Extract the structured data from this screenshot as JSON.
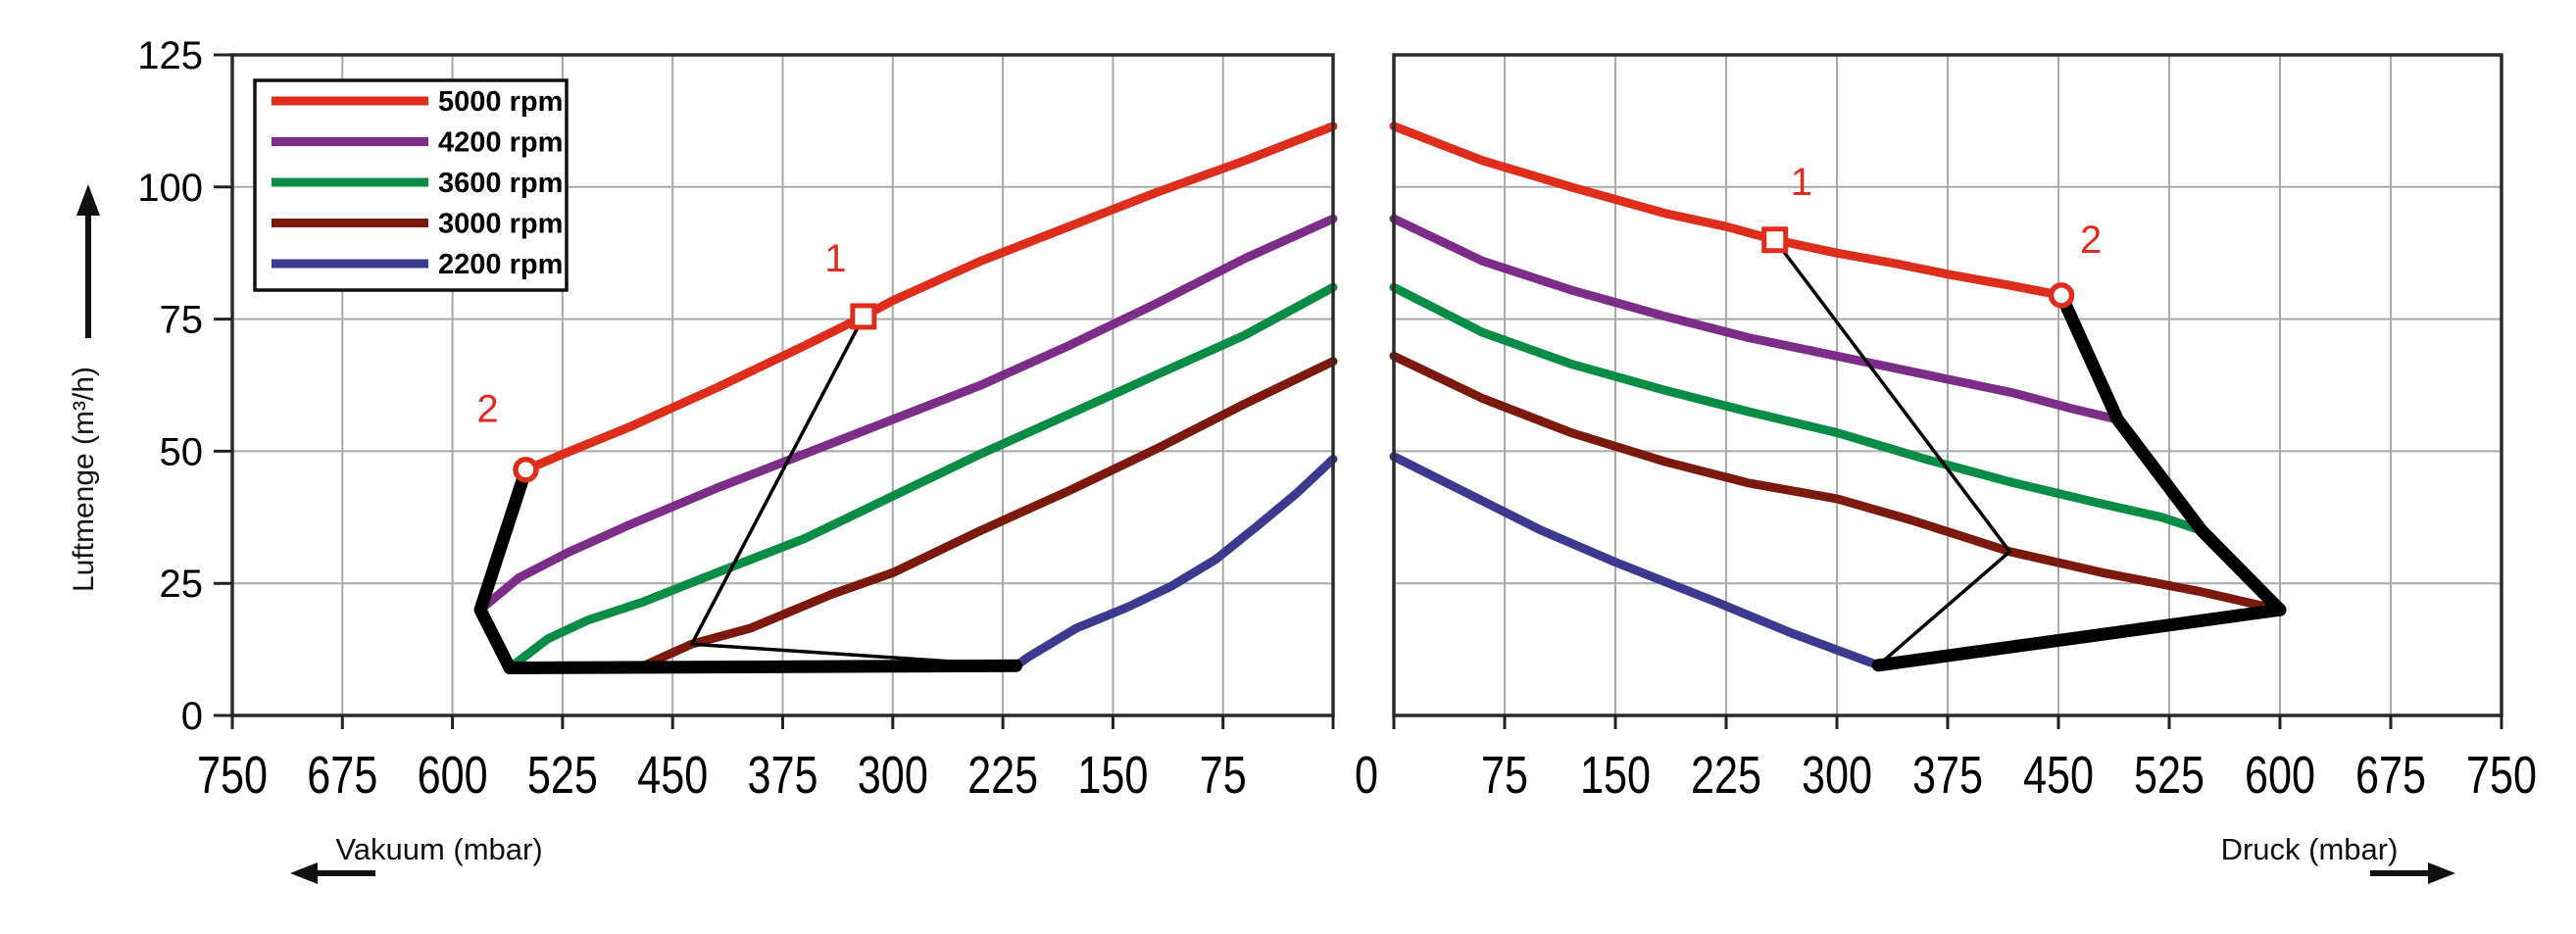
{
  "chart_data": {
    "type": "line",
    "title": "",
    "ylabel": "Luftmenge (m³/h)",
    "xlabel_left": "Vakuum (mbar)",
    "xlabel_right": "Druck (mbar)",
    "zero_label": "0",
    "ylim": [
      0,
      125
    ],
    "yticks": [
      0,
      25,
      50,
      75,
      100,
      125
    ],
    "x_max_mbar": 750,
    "xticks_left": [
      750,
      675,
      600,
      525,
      450,
      375,
      300,
      225,
      150,
      75
    ],
    "xticks_right": [
      75,
      150,
      225,
      300,
      375,
      450,
      525,
      600,
      675,
      750
    ],
    "grid": true,
    "legend_position": "top-left",
    "legend_items": [
      {
        "label": "5000 rpm",
        "color": "#df2d1d"
      },
      {
        "label": "4200 rpm",
        "color": "#7c2d87"
      },
      {
        "label": "3600 rpm",
        "color": "#098c46"
      },
      {
        "label": "3000 rpm",
        "color": "#7c190f"
      },
      {
        "label": "2200 rpm",
        "color": "#3c3a8e"
      }
    ],
    "series_vacuum": [
      {
        "name": "5000 rpm",
        "color": "#df2d1d",
        "points": [
          [
            0,
            111.5
          ],
          [
            60,
            105
          ],
          [
            120,
            99
          ],
          [
            180,
            92.5
          ],
          [
            240,
            86
          ],
          [
            300,
            78.5
          ],
          [
            320,
            75.5
          ],
          [
            360,
            70
          ],
          [
            420,
            62
          ],
          [
            480,
            54.5
          ],
          [
            520,
            50
          ],
          [
            550,
            46.5
          ]
        ]
      },
      {
        "name": "4200 rpm",
        "color": "#7c2d87",
        "points": [
          [
            0,
            94
          ],
          [
            60,
            86.5
          ],
          [
            120,
            78
          ],
          [
            180,
            70
          ],
          [
            240,
            62.5
          ],
          [
            300,
            56
          ],
          [
            360,
            49.5
          ],
          [
            420,
            43
          ],
          [
            480,
            36
          ],
          [
            520,
            31
          ],
          [
            555,
            26
          ],
          [
            581,
            20
          ]
        ]
      },
      {
        "name": "3600 rpm",
        "color": "#098c46",
        "points": [
          [
            0,
            81
          ],
          [
            60,
            72
          ],
          [
            120,
            64.5
          ],
          [
            180,
            57
          ],
          [
            240,
            49.5
          ],
          [
            300,
            41.5
          ],
          [
            360,
            33.5
          ],
          [
            420,
            27
          ],
          [
            470,
            21.5
          ],
          [
            508,
            18
          ],
          [
            535,
            14.5
          ],
          [
            561,
            9
          ]
        ]
      },
      {
        "name": "3000 rpm",
        "color": "#7c190f",
        "points": [
          [
            0,
            67
          ],
          [
            60,
            59
          ],
          [
            120,
            50.5
          ],
          [
            180,
            42.5
          ],
          [
            240,
            35
          ],
          [
            300,
            27
          ],
          [
            341,
            23
          ],
          [
            397,
            16.5
          ],
          [
            437,
            13.5
          ],
          [
            469,
            9.5
          ]
        ]
      },
      {
        "name": "2200 rpm",
        "color": "#3c3a8e",
        "points": [
          [
            0,
            48.5
          ],
          [
            25,
            42
          ],
          [
            51,
            36
          ],
          [
            80,
            29.5
          ],
          [
            110,
            24.5
          ],
          [
            140,
            20.5
          ],
          [
            175,
            16.5
          ],
          [
            208,
            11
          ],
          [
            216,
            9.4
          ]
        ]
      }
    ],
    "series_pressure": [
      {
        "name": "5000 rpm",
        "color": "#df2d1d",
        "points": [
          [
            0,
            111.5
          ],
          [
            60,
            105
          ],
          [
            120,
            100
          ],
          [
            184,
            95
          ],
          [
            225,
            92.5
          ],
          [
            258,
            90
          ],
          [
            300,
            87.5
          ],
          [
            340,
            85.5
          ],
          [
            375,
            83.5
          ],
          [
            415,
            81.5
          ],
          [
            452,
            79.5
          ]
        ]
      },
      {
        "name": "4200 rpm",
        "color": "#7c2d87",
        "points": [
          [
            0,
            94
          ],
          [
            60,
            86
          ],
          [
            120,
            80.5
          ],
          [
            184,
            75.5
          ],
          [
            240,
            71.5
          ],
          [
            300,
            68
          ],
          [
            360,
            64.5
          ],
          [
            420,
            61
          ],
          [
            460,
            58
          ],
          [
            490,
            56
          ]
        ]
      },
      {
        "name": "3600 rpm",
        "color": "#098c46",
        "points": [
          [
            0,
            81
          ],
          [
            60,
            72.5
          ],
          [
            120,
            66.5
          ],
          [
            184,
            61.5
          ],
          [
            240,
            57.5
          ],
          [
            300,
            53.5
          ],
          [
            360,
            48.5
          ],
          [
            420,
            44
          ],
          [
            480,
            40
          ],
          [
            520,
            37.5
          ],
          [
            547,
            35
          ]
        ]
      },
      {
        "name": "3000 rpm",
        "color": "#7c190f",
        "points": [
          [
            0,
            68
          ],
          [
            60,
            60
          ],
          [
            120,
            53.5
          ],
          [
            184,
            48
          ],
          [
            240,
            44
          ],
          [
            300,
            41
          ],
          [
            350,
            37
          ],
          [
            417,
            31
          ],
          [
            480,
            27
          ],
          [
            545,
            23.5
          ],
          [
            600,
            20
          ]
        ]
      },
      {
        "name": "2200 rpm",
        "color": "#3c3a8e",
        "points": [
          [
            0,
            49
          ],
          [
            50,
            42
          ],
          [
            100,
            35
          ],
          [
            150,
            29
          ],
          [
            218,
            21.5
          ],
          [
            270,
            15.5
          ],
          [
            328,
            9.5
          ]
        ]
      }
    ],
    "envelope_left": {
      "upper": [
        [
          550,
          46.5
        ],
        [
          581,
          20
        ],
        [
          561,
          9
        ]
      ],
      "bottom": [
        [
          561,
          9
        ],
        [
          216,
          9.4
        ]
      ]
    },
    "envelope_right": {
      "upper": [
        [
          452,
          79.5
        ],
        [
          490,
          56
        ],
        [
          547,
          35
        ],
        [
          600,
          20
        ]
      ],
      "bottom": [
        [
          600,
          20
        ],
        [
          328,
          9.5
        ]
      ]
    },
    "guide_left": [
      [
        320,
        75.5
      ],
      [
        437,
        13.5
      ],
      [
        216,
        9.4
      ]
    ],
    "guide_right": [
      [
        258,
        90
      ],
      [
        417,
        31
      ],
      [
        328,
        9.5
      ]
    ],
    "markers": {
      "left": [
        {
          "shape": "square",
          "x": 320,
          "y": 75.5,
          "label": "1",
          "lx": 339,
          "ly": 84
        },
        {
          "shape": "circle",
          "x": 550,
          "y": 46.5,
          "label": "2",
          "lx": 576,
          "ly": 55.5
        }
      ],
      "right": [
        {
          "shape": "square",
          "x": 258,
          "y": 90,
          "label": "1",
          "lx": 276,
          "ly": 98.5
        },
        {
          "shape": "circle",
          "x": 452,
          "y": 79.5,
          "label": "2",
          "lx": 472,
          "ly": 87.5
        }
      ]
    },
    "colors": {
      "marker": "#df2d1d",
      "envelope": "#000000",
      "grid": "#a9a9a9",
      "border": "#2b2b2b",
      "text": "#111111"
    }
  }
}
